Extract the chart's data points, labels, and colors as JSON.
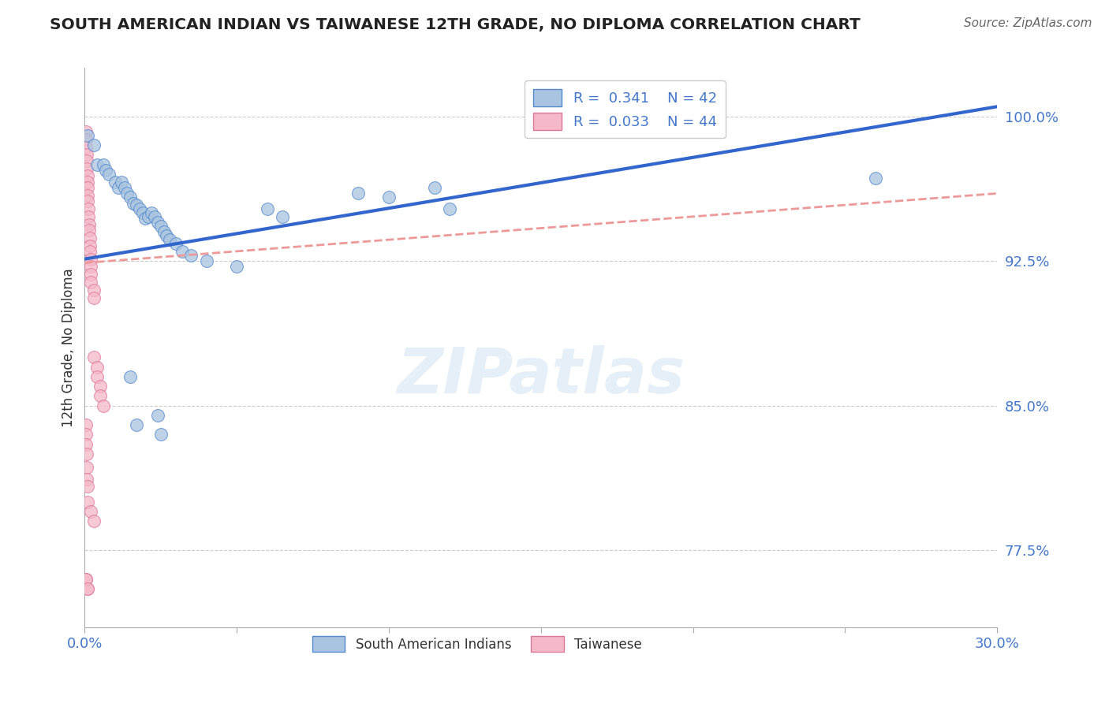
{
  "title": "SOUTH AMERICAN INDIAN VS TAIWANESE 12TH GRADE, NO DIPLOMA CORRELATION CHART",
  "source": "Source: ZipAtlas.com",
  "ylabel": "12th Grade, No Diploma",
  "xlim": [
    0.0,
    0.3
  ],
  "ylim": [
    0.735,
    1.025
  ],
  "yticks": [
    0.775,
    0.85,
    0.925,
    1.0
  ],
  "ytick_labels": [
    "77.5%",
    "85.0%",
    "92.5%",
    "100.0%"
  ],
  "r_blue": 0.341,
  "n_blue": 42,
  "r_pink": 0.033,
  "n_pink": 44,
  "legend_labels": [
    "South American Indians",
    "Taiwanese"
  ],
  "blue_color": "#A8C4E0",
  "blue_edge_color": "#5588CC",
  "pink_color": "#F4B8C8",
  "pink_edge_color": "#DD7799",
  "blue_line_color": "#3366CC",
  "pink_line_color": "#EE9999",
  "blue_scatter": [
    [
      0.001,
      0.99
    ],
    [
      0.003,
      0.985
    ],
    [
      0.004,
      0.975
    ],
    [
      0.006,
      0.975
    ],
    [
      0.007,
      0.972
    ],
    [
      0.008,
      0.97
    ],
    [
      0.01,
      0.966
    ],
    [
      0.011,
      0.963
    ],
    [
      0.012,
      0.966
    ],
    [
      0.013,
      0.963
    ],
    [
      0.014,
      0.96
    ],
    [
      0.015,
      0.958
    ],
    [
      0.016,
      0.955
    ],
    [
      0.017,
      0.954
    ],
    [
      0.018,
      0.952
    ],
    [
      0.019,
      0.95
    ],
    [
      0.02,
      0.947
    ],
    [
      0.021,
      0.948
    ],
    [
      0.022,
      0.95
    ],
    [
      0.023,
      0.948
    ],
    [
      0.024,
      0.945
    ],
    [
      0.025,
      0.943
    ],
    [
      0.026,
      0.94
    ],
    [
      0.027,
      0.938
    ],
    [
      0.028,
      0.936
    ],
    [
      0.03,
      0.934
    ],
    [
      0.032,
      0.93
    ],
    [
      0.035,
      0.928
    ],
    [
      0.04,
      0.925
    ],
    [
      0.05,
      0.922
    ],
    [
      0.015,
      0.865
    ],
    [
      0.017,
      0.84
    ],
    [
      0.024,
      0.845
    ],
    [
      0.025,
      0.835
    ],
    [
      0.06,
      0.952
    ],
    [
      0.065,
      0.948
    ],
    [
      0.09,
      0.96
    ],
    [
      0.1,
      0.958
    ],
    [
      0.115,
      0.963
    ],
    [
      0.12,
      0.952
    ],
    [
      0.185,
      1.0
    ],
    [
      0.26,
      0.968
    ]
  ],
  "pink_scatter": [
    [
      0.0003,
      0.992
    ],
    [
      0.0004,
      0.988
    ],
    [
      0.0005,
      0.984
    ],
    [
      0.0006,
      0.98
    ],
    [
      0.0007,
      0.977
    ],
    [
      0.0008,
      0.973
    ],
    [
      0.0009,
      0.969
    ],
    [
      0.001,
      0.966
    ],
    [
      0.001,
      0.963
    ],
    [
      0.001,
      0.959
    ],
    [
      0.001,
      0.956
    ],
    [
      0.0012,
      0.952
    ],
    [
      0.0013,
      0.948
    ],
    [
      0.0014,
      0.944
    ],
    [
      0.0015,
      0.941
    ],
    [
      0.0016,
      0.937
    ],
    [
      0.0017,
      0.933
    ],
    [
      0.0018,
      0.93
    ],
    [
      0.002,
      0.926
    ],
    [
      0.002,
      0.922
    ],
    [
      0.002,
      0.918
    ],
    [
      0.002,
      0.914
    ],
    [
      0.003,
      0.91
    ],
    [
      0.003,
      0.906
    ],
    [
      0.003,
      0.875
    ],
    [
      0.004,
      0.87
    ],
    [
      0.004,
      0.865
    ],
    [
      0.005,
      0.86
    ],
    [
      0.005,
      0.855
    ],
    [
      0.006,
      0.85
    ],
    [
      0.0003,
      0.84
    ],
    [
      0.0004,
      0.835
    ],
    [
      0.0005,
      0.83
    ],
    [
      0.0006,
      0.825
    ],
    [
      0.0007,
      0.818
    ],
    [
      0.0008,
      0.812
    ],
    [
      0.001,
      0.808
    ],
    [
      0.001,
      0.8
    ],
    [
      0.002,
      0.795
    ],
    [
      0.003,
      0.79
    ],
    [
      0.0003,
      0.76
    ],
    [
      0.001,
      0.755
    ],
    [
      0.0003,
      0.76
    ],
    [
      0.001,
      0.755
    ]
  ],
  "watermark": "ZIPatlas",
  "watermark_color": "#C0D8EE"
}
